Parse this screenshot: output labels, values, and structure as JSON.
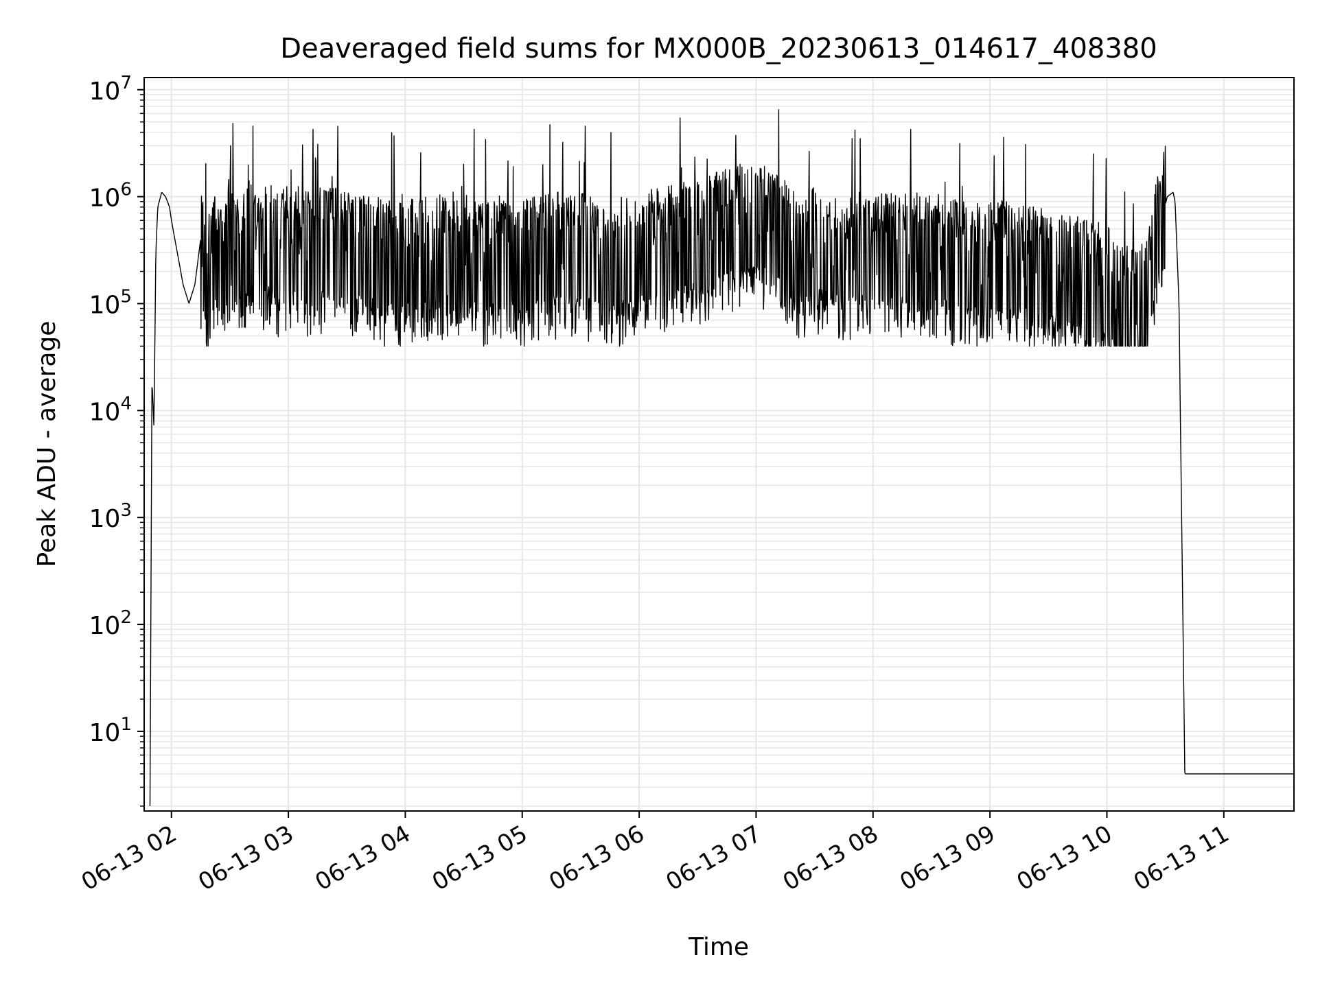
{
  "chart_data": {
    "type": "line",
    "title": "Deaveraged field sums for MX000B_20230613_014617_408380",
    "xlabel": "Time",
    "ylabel": "Peak ADU - average",
    "y_scale": "log",
    "ylim": [
      1.8,
      13000000
    ],
    "xlim": [
      "2023-06-13 01:46",
      "2023-06-13 11:36"
    ],
    "grid": true,
    "line_color": "#000000",
    "x_ticks": [
      {
        "t": "2023-06-13 02:00",
        "label": "06-13 02"
      },
      {
        "t": "2023-06-13 03:00",
        "label": "06-13 03"
      },
      {
        "t": "2023-06-13 04:00",
        "label": "06-13 04"
      },
      {
        "t": "2023-06-13 05:00",
        "label": "06-13 05"
      },
      {
        "t": "2023-06-13 06:00",
        "label": "06-13 06"
      },
      {
        "t": "2023-06-13 07:00",
        "label": "06-13 07"
      },
      {
        "t": "2023-06-13 08:00",
        "label": "06-13 08"
      },
      {
        "t": "2023-06-13 09:00",
        "label": "06-13 09"
      },
      {
        "t": "2023-06-13 10:00",
        "label": "06-13 10"
      },
      {
        "t": "2023-06-13 11:00",
        "label": "06-13 11"
      }
    ],
    "y_ticks": [
      {
        "value": 10,
        "base": "10",
        "exp": "1"
      },
      {
        "value": 100,
        "base": "10",
        "exp": "2"
      },
      {
        "value": 1000,
        "base": "10",
        "exp": "3"
      },
      {
        "value": 10000,
        "base": "10",
        "exp": "4"
      },
      {
        "value": 100000,
        "base": "10",
        "exp": "5"
      },
      {
        "value": 1000000,
        "base": "10",
        "exp": "6"
      },
      {
        "value": 10000000,
        "base": "10",
        "exp": "7"
      }
    ],
    "series": [
      {
        "x": [
          "2023-06-13 01:49",
          "2023-06-13 01:50",
          "2023-06-13 01:51",
          "2023-06-13 01:52",
          "2023-06-13 01:53",
          "2023-06-13 01:55",
          "2023-06-13 01:57",
          "2023-06-13 01:59",
          "2023-06-13 02:00",
          "2023-06-13 02:03",
          "2023-06-13 02:06",
          "2023-06-13 02:09",
          "2023-06-13 02:12",
          "2023-06-13 02:15",
          "2023-06-13 02:18",
          "2023-06-13 02:22",
          "2023-06-13 02:26",
          "2023-06-13 02:30",
          "2023-06-13 02:35",
          "2023-06-13 02:40",
          "2023-06-13 02:45",
          "2023-06-13 02:50",
          "2023-06-13 02:55",
          "2023-06-13 03:00",
          "2023-06-13 03:10",
          "2023-06-13 03:20",
          "2023-06-13 03:30",
          "2023-06-13 03:40",
          "2023-06-13 03:50",
          "2023-06-13 04:00",
          "2023-06-13 04:10",
          "2023-06-13 04:20",
          "2023-06-13 04:24",
          "2023-06-13 04:30",
          "2023-06-13 04:40",
          "2023-06-13 04:50",
          "2023-06-13 05:00",
          "2023-06-13 05:15",
          "2023-06-13 05:30",
          "2023-06-13 05:45",
          "2023-06-13 06:00",
          "2023-06-13 06:15",
          "2023-06-13 06:30",
          "2023-06-13 06:45",
          "2023-06-13 07:00",
          "2023-06-13 07:10",
          "2023-06-13 07:20",
          "2023-06-13 07:30",
          "2023-06-13 07:45",
          "2023-06-13 08:00",
          "2023-06-13 08:15",
          "2023-06-13 08:30",
          "2023-06-13 08:45",
          "2023-06-13 09:00",
          "2023-06-13 09:15",
          "2023-06-13 09:30",
          "2023-06-13 09:45",
          "2023-06-13 10:00",
          "2023-06-13 10:05",
          "2023-06-13 10:10",
          "2023-06-13 10:15",
          "2023-06-13 10:20",
          "2023-06-13 10:22",
          "2023-06-13 10:25",
          "2023-06-13 10:28",
          "2023-06-13 10:31",
          "2023-06-13 10:34",
          "2023-06-13 10:35",
          "2023-06-13 10:36",
          "2023-06-13 10:37",
          "2023-06-13 10:40",
          "2023-06-13 10:45",
          "2023-06-13 11:00",
          "2023-06-13 11:15",
          "2023-06-13 11:30",
          "2023-06-13 11:36"
        ],
        "y": [
          2,
          20000,
          7000,
          300000,
          800000,
          1100000,
          1000000,
          800000,
          600000,
          300000,
          150000,
          100000,
          150000,
          400000,
          150000,
          300000,
          200000,
          400000,
          300000,
          400000,
          300000,
          400000,
          300000,
          400000,
          300000,
          350000,
          300000,
          300000,
          250000,
          250000,
          300000,
          300000,
          300000,
          300000,
          250000,
          300000,
          250000,
          300000,
          300000,
          250000,
          300000,
          350000,
          400000,
          500000,
          600000,
          500000,
          300000,
          350000,
          300000,
          300000,
          300000,
          300000,
          250000,
          250000,
          250000,
          200000,
          180000,
          150000,
          100000,
          100000,
          100000,
          100000,
          150000,
          400000,
          600000,
          1000000,
          1100000,
          900000,
          300000,
          100000,
          4,
          4,
          4,
          4,
          4,
          4
        ]
      }
    ]
  }
}
